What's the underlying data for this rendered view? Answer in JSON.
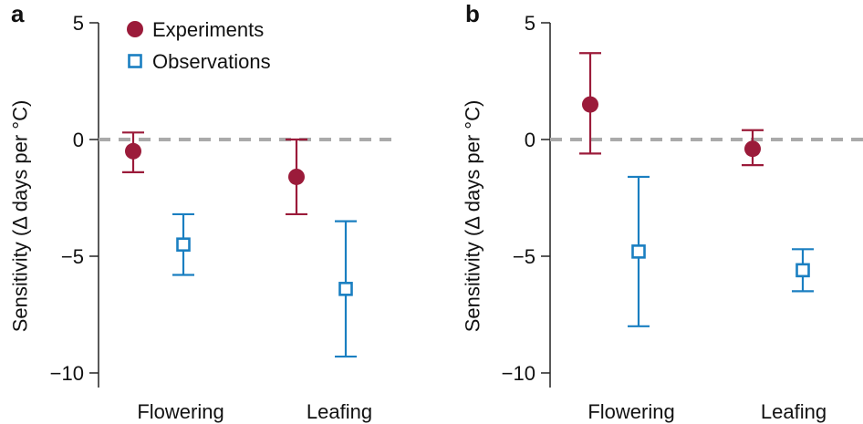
{
  "colors": {
    "experiments": "#9b1b3a",
    "observations": "#1a7fc1",
    "zero_line": "#aaaaaa",
    "axis": "#222222",
    "text": "#111111"
  },
  "chart_data": [
    {
      "panel_label": "a",
      "type": "scatter",
      "ylabel": "Sensitivity (Δ days per °C)",
      "yticks": [
        "5",
        "0",
        "−5",
        "−10"
      ],
      "ylim": [
        -10.5,
        5
      ],
      "categories": [
        "Flowering",
        "Leafing"
      ],
      "reference_line_y": 0,
      "legend": {
        "position": "top-left",
        "entries": [
          "Experiments",
          "Observations"
        ]
      },
      "series": [
        {
          "name": "Experiments",
          "marker": "filled-circle",
          "color": "#9b1b3a",
          "points": [
            {
              "category": "Flowering",
              "y": -0.5,
              "low": -1.4,
              "high": 0.3
            },
            {
              "category": "Leafing",
              "y": -1.6,
              "low": -3.2,
              "high": 0.0
            }
          ]
        },
        {
          "name": "Observations",
          "marker": "open-square",
          "color": "#1a7fc1",
          "points": [
            {
              "category": "Flowering",
              "y": -4.5,
              "low": -5.8,
              "high": -3.2
            },
            {
              "category": "Leafing",
              "y": -6.4,
              "low": -9.3,
              "high": -3.5
            }
          ]
        }
      ]
    },
    {
      "panel_label": "b",
      "type": "scatter",
      "ylabel": "Sensitivity (Δ days per °C)",
      "yticks": [
        "5",
        "0",
        "−5",
        "−10"
      ],
      "ylim": [
        -10.5,
        5
      ],
      "categories": [
        "Flowering",
        "Leafing"
      ],
      "reference_line_y": 0,
      "series": [
        {
          "name": "Experiments",
          "marker": "filled-circle",
          "color": "#9b1b3a",
          "points": [
            {
              "category": "Flowering",
              "y": 1.5,
              "low": -0.6,
              "high": 3.7
            },
            {
              "category": "Leafing",
              "y": -0.4,
              "low": -1.1,
              "high": 0.4
            }
          ]
        },
        {
          "name": "Observations",
          "marker": "open-square",
          "color": "#1a7fc1",
          "points": [
            {
              "category": "Flowering",
              "y": -4.8,
              "low": -8.0,
              "high": -1.6
            },
            {
              "category": "Leafing",
              "y": -5.6,
              "low": -6.5,
              "high": -4.7
            }
          ]
        }
      ]
    }
  ]
}
